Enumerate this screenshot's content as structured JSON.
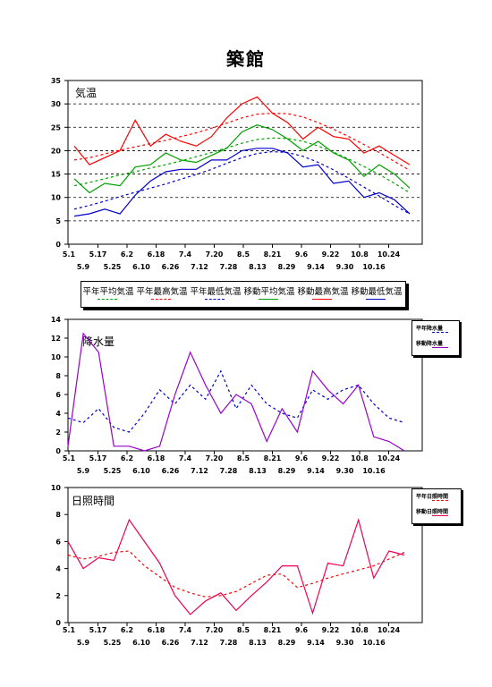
{
  "page_title": "築館",
  "temp": {
    "panel_label": "気温",
    "legend": [
      {
        "name": "平年平均気温",
        "color": "#00a000",
        "dash": "3,3"
      },
      {
        "name": "平年最高気温",
        "color": "#ff0000",
        "dash": "3,3"
      },
      {
        "name": "平年最低気温",
        "color": "#0000cc",
        "dash": "3,3"
      },
      {
        "name": "移動平均気温",
        "color": "#00a000",
        "dash": ""
      },
      {
        "name": "移動最高気温",
        "color": "#ff0000",
        "dash": ""
      },
      {
        "name": "移動最低気温",
        "color": "#0000cc",
        "dash": ""
      }
    ]
  },
  "precip": {
    "panel_label": "降水量",
    "legend": [
      {
        "name": "平年降水量",
        "color": "#0000cc",
        "dash": "3,3"
      },
      {
        "name": "移動降水量",
        "color": "#9900cc",
        "dash": ""
      }
    ]
  },
  "sun": {
    "panel_label": "日照時間",
    "legend": [
      {
        "name": "平年日照時間",
        "color": "#ff0000",
        "dash": "3,3"
      },
      {
        "name": "移動日照時間",
        "color": "#ee0055",
        "dash": ""
      }
    ]
  },
  "chart_data": [
    {
      "type": "line",
      "x_ticks_row1": [
        "5.1",
        "5.17",
        "6.2",
        "6.18",
        "7.4",
        "7.20",
        "8.5",
        "8.21",
        "9.6",
        "9.22",
        "10.8",
        "10.24"
      ],
      "x_ticks_row2": [
        "5.9",
        "5.25",
        "6.10",
        "6.26",
        "7.12",
        "7.28",
        "8.13",
        "8.29",
        "9.14",
        "9.30",
        "10.16"
      ],
      "ylim": [
        0,
        35
      ],
      "yticks": [
        0,
        5,
        10,
        15,
        20,
        25,
        30,
        35
      ],
      "grid": "dashed horizontal",
      "series": [
        {
          "name": "平年平均気温",
          "values": [
            12.5,
            13.2,
            14.0,
            14.8,
            15.5,
            16.3,
            17.0,
            17.8,
            18.7,
            19.6,
            20.6,
            21.6,
            22.4,
            22.7,
            22.6,
            22.0,
            21.0,
            19.7,
            18.2,
            16.6,
            14.9,
            13.0,
            11.0
          ]
        },
        {
          "name": "平年最高気温",
          "values": [
            18.0,
            18.5,
            19.3,
            20.1,
            20.8,
            21.5,
            22.2,
            23.0,
            23.8,
            24.8,
            25.9,
            27.0,
            27.8,
            28.0,
            27.9,
            27.2,
            26.0,
            24.6,
            23.0,
            21.3,
            19.6,
            17.7,
            15.8
          ]
        },
        {
          "name": "平年最低気温",
          "values": [
            7.5,
            8.3,
            9.2,
            10.2,
            11.1,
            12.0,
            12.9,
            13.9,
            14.9,
            16.0,
            17.3,
            18.5,
            19.4,
            19.8,
            19.6,
            18.8,
            17.5,
            15.9,
            14.1,
            12.2,
            10.3,
            8.3,
            6.5
          ]
        },
        {
          "name": "移動平均気温",
          "values": [
            14.0,
            11.0,
            13.0,
            12.5,
            16.5,
            17.0,
            19.5,
            18.0,
            17.5,
            19.0,
            20.5,
            24.0,
            25.5,
            24.5,
            22.5,
            20.0,
            22.0,
            19.5,
            18.0,
            14.5,
            17.0,
            15.0,
            12.0
          ]
        },
        {
          "name": "移動最高気温",
          "values": [
            21.0,
            17.0,
            18.5,
            20.0,
            26.5,
            21.0,
            23.5,
            22.0,
            21.0,
            23.0,
            27.0,
            30.0,
            31.5,
            28.0,
            26.0,
            22.5,
            25.0,
            23.0,
            22.5,
            19.5,
            21.0,
            19.0,
            17.0
          ]
        },
        {
          "name": "移動最低気温",
          "values": [
            6.0,
            6.5,
            7.5,
            6.5,
            10.5,
            13.5,
            15.5,
            16.0,
            16.0,
            18.0,
            18.0,
            20.0,
            20.5,
            20.5,
            19.5,
            16.5,
            17.0,
            13.0,
            13.5,
            10.0,
            11.0,
            9.5,
            6.5
          ]
        }
      ]
    },
    {
      "type": "line",
      "ylim": [
        0,
        14
      ],
      "yticks": [
        0,
        2,
        4,
        6,
        8,
        10,
        12,
        14
      ],
      "series": [
        {
          "name": "平年降水量",
          "values": [
            3.5,
            3.0,
            4.5,
            2.5,
            2.0,
            4.0,
            6.5,
            5.0,
            7.0,
            5.5,
            8.5,
            4.5,
            7.0,
            5.0,
            4.0,
            3.5,
            6.5,
            5.5,
            6.5,
            7.0,
            5.0,
            3.5,
            3.0
          ]
        },
        {
          "name": "移動降水量",
          "values": [
            0.5,
            12.5,
            10.5,
            0.5,
            0.5,
            0.0,
            0.5,
            6.0,
            10.5,
            7.0,
            4.0,
            6.0,
            5.0,
            1.0,
            4.5,
            2.0,
            8.5,
            6.5,
            5.0,
            7.0,
            1.5,
            1.0,
            0.0
          ]
        }
      ]
    },
    {
      "type": "line",
      "ylim": [
        0,
        10
      ],
      "yticks": [
        0,
        2,
        4,
        6,
        8,
        10
      ],
      "series": [
        {
          "name": "平年日照時間",
          "values": [
            5.0,
            4.7,
            4.9,
            5.2,
            5.3,
            4.2,
            3.4,
            2.6,
            2.2,
            1.9,
            2.0,
            2.3,
            2.9,
            3.5,
            3.6,
            2.6,
            2.9,
            3.3,
            3.6,
            3.9,
            4.2,
            4.7,
            5.2
          ]
        },
        {
          "name": "移動日照時間",
          "values": [
            6.0,
            4.0,
            4.8,
            4.6,
            7.6,
            6.0,
            4.4,
            2.0,
            0.6,
            1.6,
            2.2,
            0.9,
            2.0,
            3.0,
            4.2,
            4.2,
            0.7,
            4.4,
            4.2,
            7.6,
            3.3,
            5.3,
            5.0
          ]
        }
      ]
    }
  ]
}
